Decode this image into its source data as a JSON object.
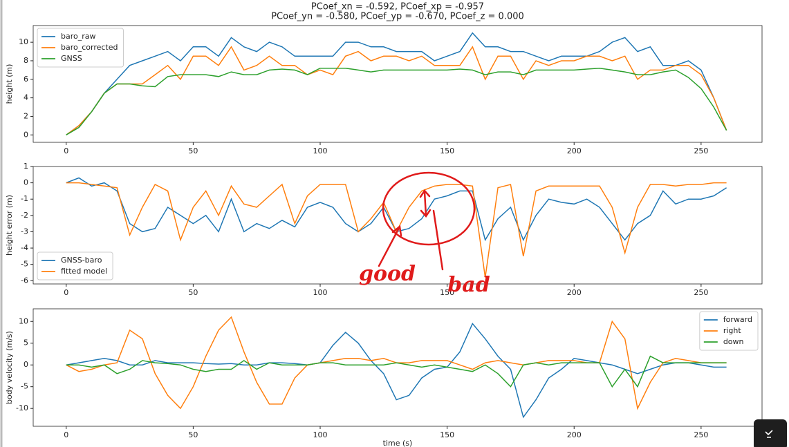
{
  "chart_data": [
    {
      "type": "line",
      "title": "PCoef_xn = -0.592, PCoef_xp = -0.957",
      "subtitle": "PCoef_yn = -0.580, PCoef_yp = -0.670, PCoef_z = 0.000",
      "ylabel": "height (m)",
      "legend": "upper left",
      "x": [
        0,
        5,
        10,
        15,
        20,
        25,
        30,
        35,
        40,
        45,
        50,
        55,
        60,
        65,
        70,
        75,
        80,
        85,
        90,
        95,
        100,
        105,
        110,
        115,
        120,
        125,
        130,
        135,
        140,
        145,
        150,
        155,
        160,
        165,
        170,
        175,
        180,
        185,
        190,
        195,
        200,
        205,
        210,
        215,
        220,
        225,
        230,
        235,
        240,
        245,
        250,
        255,
        260
      ],
      "xlim": [
        -13,
        274
      ],
      "xticks": [
        0,
        50,
        100,
        150,
        200,
        250
      ],
      "ylim": [
        -0.8,
        11.8
      ],
      "yticks": [
        0,
        2,
        4,
        6,
        8,
        10
      ],
      "series": [
        {
          "name": "baro_raw",
          "color": "#1f77b4",
          "values": [
            0,
            1,
            2.5,
            4.5,
            6,
            7.5,
            8,
            8.5,
            9,
            8,
            9.5,
            9.5,
            8.5,
            10.5,
            9.5,
            9,
            10,
            9.5,
            8.5,
            8.5,
            8.5,
            8.5,
            10,
            10,
            9.5,
            9.5,
            9,
            9,
            9,
            8,
            8.5,
            9,
            11,
            9.5,
            9.5,
            9,
            9,
            8.5,
            8,
            8.5,
            8.5,
            8.5,
            9,
            10,
            10.5,
            9,
            9.5,
            7.5,
            7.5,
            8,
            7,
            4,
            0.5
          ]
        },
        {
          "name": "baro_corrected",
          "color": "#ff7f0e",
          "values": [
            0,
            1,
            2.5,
            4.5,
            5.5,
            5.5,
            5.5,
            6.5,
            7.5,
            6,
            8.5,
            8.5,
            7.5,
            9.5,
            7,
            7.5,
            8.5,
            7.5,
            7.5,
            6.5,
            7,
            6.5,
            8.5,
            9,
            8,
            8.5,
            8.5,
            8,
            8.5,
            7.5,
            7.5,
            7.5,
            9.5,
            6,
            8.5,
            8.5,
            6,
            8,
            7.5,
            8,
            8,
            8.5,
            8.5,
            8,
            8.5,
            6,
            7,
            7,
            7.5,
            7.5,
            6.5,
            4,
            0.5
          ]
        },
        {
          "name": "GNSS",
          "color": "#2ca02c",
          "values": [
            0,
            0.8,
            2.5,
            4.5,
            5.5,
            5.5,
            5.3,
            5.2,
            6.3,
            6.5,
            6.5,
            6.5,
            6.3,
            6.8,
            6.5,
            6.5,
            7,
            7.1,
            7,
            6.5,
            7.2,
            7.2,
            7.2,
            7,
            6.8,
            7,
            7,
            7,
            7,
            7,
            7,
            7.1,
            7,
            6.5,
            6.8,
            6.8,
            6.5,
            7,
            7,
            7,
            7,
            7.1,
            7.2,
            7,
            6.8,
            6.5,
            6.5,
            6.8,
            7,
            6.2,
            5,
            3,
            0.5
          ]
        }
      ]
    },
    {
      "type": "line",
      "ylabel": "height error (m)",
      "legend": "lower left",
      "x": [
        0,
        5,
        10,
        15,
        20,
        25,
        30,
        35,
        40,
        45,
        50,
        55,
        60,
        65,
        70,
        75,
        80,
        85,
        90,
        95,
        100,
        105,
        110,
        115,
        120,
        125,
        130,
        135,
        140,
        145,
        150,
        155,
        160,
        165,
        170,
        175,
        180,
        185,
        190,
        195,
        200,
        205,
        210,
        215,
        220,
        225,
        230,
        235,
        240,
        245,
        250,
        255,
        260
      ],
      "xlim": [
        -13,
        274
      ],
      "xticks": [
        0,
        50,
        100,
        150,
        200,
        250
      ],
      "ylim": [
        -6.2,
        1.0
      ],
      "yticks": [
        -6,
        -5,
        -4,
        -3,
        -2,
        -1,
        0,
        1
      ],
      "annotations": [
        "good",
        "bad"
      ],
      "series": [
        {
          "name": "GNSS-baro",
          "color": "#1f77b4",
          "values": [
            0,
            0.3,
            -0.2,
            0,
            -0.5,
            -2.5,
            -3,
            -2.8,
            -1.5,
            -2,
            -2.5,
            -2,
            -3,
            -1,
            -3,
            -2.5,
            -2.8,
            -2.3,
            -2.7,
            -1.5,
            -1.2,
            -1.5,
            -2.5,
            -3,
            -2.5,
            -1.5,
            -3,
            -2.8,
            -2.2,
            -1,
            -0.8,
            -0.5,
            -0.5,
            -3.5,
            -2.2,
            -1.5,
            -3.5,
            -2,
            -1,
            -1.2,
            -1.3,
            -1,
            -1.5,
            -2.5,
            -3.5,
            -2.5,
            -2,
            -0.5,
            -1.3,
            -1,
            -1,
            -0.8,
            -0.3
          ]
        },
        {
          "name": "fitted model",
          "color": "#ff7f0e",
          "values": [
            0,
            0,
            -0.1,
            -0.2,
            -0.3,
            -3.2,
            -1.5,
            -0.1,
            -0.5,
            -3.5,
            -1.5,
            -0.5,
            -2,
            -0.2,
            -1.3,
            -1.5,
            -0.8,
            -0.1,
            -2.5,
            -0.8,
            -0.1,
            -0.1,
            -0.1,
            -3,
            -2.2,
            -1.2,
            -3,
            -1.5,
            -0.5,
            -0.2,
            -0.1,
            -0.1,
            -0.2,
            -5.8,
            -0.3,
            -0.1,
            -4.5,
            -0.5,
            -0.2,
            -0.2,
            -0.2,
            -0.2,
            -0.2,
            -1.5,
            -4.3,
            -1.5,
            -0.1,
            -0.1,
            -0.2,
            -0.1,
            -0.1,
            0,
            0
          ]
        }
      ]
    },
    {
      "type": "line",
      "ylabel": "body velocity (m/s)",
      "xlabel": "time (s)",
      "legend": "upper right",
      "x": [
        0,
        5,
        10,
        15,
        20,
        25,
        30,
        35,
        40,
        45,
        50,
        55,
        60,
        65,
        70,
        75,
        80,
        85,
        90,
        95,
        100,
        105,
        110,
        115,
        120,
        125,
        130,
        135,
        140,
        145,
        150,
        155,
        160,
        165,
        170,
        175,
        180,
        185,
        190,
        195,
        200,
        205,
        210,
        215,
        220,
        225,
        230,
        235,
        240,
        245,
        250,
        255,
        260
      ],
      "xlim": [
        -13,
        274
      ],
      "xticks": [
        0,
        50,
        100,
        150,
        200,
        250
      ],
      "ylim": [
        -14.1,
        12.9
      ],
      "yticks": [
        -10,
        -5,
        0,
        5,
        10
      ],
      "series": [
        {
          "name": "forward",
          "color": "#1f77b4",
          "values": [
            0,
            0.5,
            1,
            1.5,
            1,
            0,
            0,
            1,
            0.5,
            0.5,
            0.5,
            0.3,
            0.2,
            0.3,
            0,
            0,
            0.5,
            0.5,
            0.3,
            0,
            0.5,
            4.5,
            7.5,
            5,
            1,
            -2,
            -8,
            -7,
            -3,
            -1,
            -0.5,
            3,
            9.5,
            6,
            2,
            -1,
            -12,
            -8,
            -3,
            -1,
            1.5,
            1,
            0.5,
            0,
            -1,
            -2,
            -1,
            0,
            0.5,
            0.5,
            0,
            -0.5,
            -0.5
          ]
        },
        {
          "name": "right",
          "color": "#ff7f0e",
          "values": [
            0,
            -1.5,
            -1,
            0,
            0.5,
            8,
            6,
            -2,
            -7,
            -10,
            -5,
            2,
            8,
            11,
            3,
            -4,
            -9,
            -9,
            -3,
            0,
            0.5,
            1,
            1.5,
            1.5,
            1,
            1.5,
            0.5,
            0.5,
            1,
            1,
            1,
            0,
            -1,
            0.5,
            1,
            0.5,
            0,
            0.5,
            1,
            1,
            1,
            0.5,
            0.5,
            10,
            6,
            -10,
            -4,
            0.5,
            1.5,
            1,
            0.5,
            0.5,
            0.5
          ]
        },
        {
          "name": "down",
          "color": "#2ca02c",
          "values": [
            0,
            0,
            -0.5,
            0,
            -2,
            -1,
            1,
            0.5,
            0.3,
            0,
            -1,
            -1.5,
            -1,
            -1,
            1,
            -1,
            0.5,
            0,
            0,
            0,
            0.5,
            0.5,
            0,
            0,
            0,
            0,
            0.5,
            0,
            -0.5,
            0,
            -0.5,
            -1,
            -1.5,
            0,
            -2,
            -5,
            0,
            0.5,
            0,
            0.5,
            0.5,
            0.5,
            0.5,
            -5,
            -1,
            -5,
            2,
            0.5,
            0.5,
            0.5,
            0.5,
            0.5,
            0.5
          ]
        }
      ]
    }
  ]
}
